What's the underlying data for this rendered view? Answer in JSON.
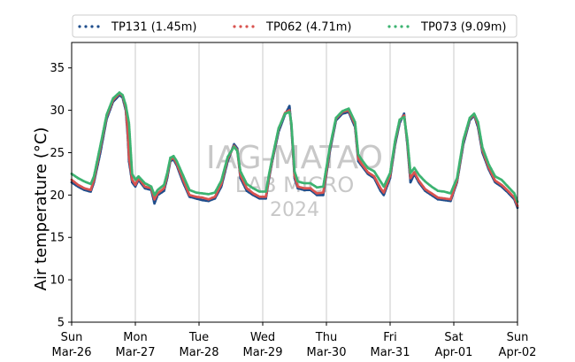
{
  "chart_data": {
    "type": "scatter",
    "title": "",
    "ylabel": "Air temperature (°C)",
    "xlabel": "",
    "ylim": [
      5,
      38
    ],
    "yticks": [
      5,
      10,
      15,
      20,
      25,
      30,
      35
    ],
    "xlim": [
      0,
      7
    ],
    "x_unit": "days since Sun Mar-26 00:00",
    "xticks": [
      {
        "day": "Sun",
        "date": "Mar-26"
      },
      {
        "day": "Mon",
        "date": "Mar-27"
      },
      {
        "day": "Tue",
        "date": "Mar-28"
      },
      {
        "day": "Wed",
        "date": "Mar-29"
      },
      {
        "day": "Thu",
        "date": "Mar-30"
      },
      {
        "day": "Fri",
        "date": "Mar-31"
      },
      {
        "day": "Sat",
        "date": "Apr-01"
      },
      {
        "day": "Sun",
        "date": "Apr-02"
      }
    ],
    "grid": "vertical",
    "legend_position": "top",
    "watermark": [
      "IAG-MATAO",
      "LAB MICRO",
      "2024"
    ],
    "series": [
      {
        "name": "TP131 (1.45m)",
        "color": "#1f4e8c",
        "points": [
          [
            0,
            21.5
          ],
          [
            0.1,
            21.0
          ],
          [
            0.2,
            20.6
          ],
          [
            0.3,
            20.4
          ],
          [
            0.35,
            21.5
          ],
          [
            0.45,
            25
          ],
          [
            0.55,
            29
          ],
          [
            0.65,
            31
          ],
          [
            0.75,
            31.8
          ],
          [
            0.8,
            31.5
          ],
          [
            0.85,
            30
          ],
          [
            0.88,
            27
          ],
          [
            0.9,
            24
          ],
          [
            0.95,
            21.5
          ],
          [
            1.0,
            21.0
          ],
          [
            1.05,
            21.8
          ],
          [
            1.15,
            20.8
          ],
          [
            1.25,
            20.6
          ],
          [
            1.3,
            19.0
          ],
          [
            1.35,
            20.0
          ],
          [
            1.45,
            20.5
          ],
          [
            1.5,
            22
          ],
          [
            1.55,
            24
          ],
          [
            1.6,
            24.2
          ],
          [
            1.65,
            23.5
          ],
          [
            1.75,
            21.5
          ],
          [
            1.85,
            19.8
          ],
          [
            1.95,
            19.6
          ],
          [
            2.05,
            19.4
          ],
          [
            2.15,
            19.3
          ],
          [
            2.25,
            19.6
          ],
          [
            2.35,
            21
          ],
          [
            2.45,
            24
          ],
          [
            2.55,
            26
          ],
          [
            2.6,
            25.5
          ],
          [
            2.65,
            22
          ],
          [
            2.75,
            20.5
          ],
          [
            2.85,
            20.0
          ],
          [
            2.95,
            19.6
          ],
          [
            3.05,
            19.6
          ],
          [
            3.1,
            22
          ],
          [
            3.15,
            24
          ],
          [
            3.25,
            27.5
          ],
          [
            3.35,
            29.5
          ],
          [
            3.42,
            30.5
          ],
          [
            3.45,
            28
          ],
          [
            3.5,
            22
          ],
          [
            3.55,
            20.8
          ],
          [
            3.65,
            20.6
          ],
          [
            3.75,
            20.6
          ],
          [
            3.85,
            20.0
          ],
          [
            3.95,
            20.0
          ],
          [
            4.05,
            25
          ],
          [
            4.15,
            28.8
          ],
          [
            4.25,
            29.6
          ],
          [
            4.35,
            29.8
          ],
          [
            4.45,
            28
          ],
          [
            4.5,
            24
          ],
          [
            4.55,
            23.5
          ],
          [
            4.65,
            22.5
          ],
          [
            4.75,
            22.0
          ],
          [
            4.85,
            20.5
          ],
          [
            4.9,
            20.0
          ],
          [
            5.0,
            22
          ],
          [
            5.08,
            26
          ],
          [
            5.15,
            28.5
          ],
          [
            5.22,
            29.6
          ],
          [
            5.27,
            26
          ],
          [
            5.32,
            21.5
          ],
          [
            5.38,
            22.5
          ],
          [
            5.45,
            21.5
          ],
          [
            5.55,
            20.5
          ],
          [
            5.65,
            20.0
          ],
          [
            5.75,
            19.5
          ],
          [
            5.85,
            19.4
          ],
          [
            5.95,
            19.3
          ],
          [
            6.05,
            21.5
          ],
          [
            6.15,
            26
          ],
          [
            6.25,
            28.8
          ],
          [
            6.32,
            29.4
          ],
          [
            6.38,
            28
          ],
          [
            6.45,
            25
          ],
          [
            6.55,
            23
          ],
          [
            6.65,
            21.5
          ],
          [
            6.75,
            21
          ],
          [
            6.85,
            20.3
          ],
          [
            6.95,
            19.5
          ],
          [
            7.0,
            18.5
          ]
        ]
      },
      {
        "name": "TP062 (4.71m)",
        "color": "#d9534f",
        "points": [
          [
            0,
            21.8
          ],
          [
            0.1,
            21.2
          ],
          [
            0.2,
            20.8
          ],
          [
            0.3,
            20.6
          ],
          [
            0.35,
            21.8
          ],
          [
            0.45,
            25.5
          ],
          [
            0.55,
            29.3
          ],
          [
            0.65,
            31.2
          ],
          [
            0.75,
            32.0
          ],
          [
            0.8,
            31.7
          ],
          [
            0.85,
            30.3
          ],
          [
            0.88,
            27.5
          ],
          [
            0.9,
            24.5
          ],
          [
            0.95,
            21.8
          ],
          [
            1.0,
            21.2
          ],
          [
            1.05,
            22.0
          ],
          [
            1.15,
            21.0
          ],
          [
            1.25,
            20.8
          ],
          [
            1.3,
            19.5
          ],
          [
            1.35,
            20.2
          ],
          [
            1.45,
            20.8
          ],
          [
            1.5,
            22.3
          ],
          [
            1.55,
            24.2
          ],
          [
            1.6,
            24.4
          ],
          [
            1.65,
            23.7
          ],
          [
            1.75,
            21.8
          ],
          [
            1.85,
            20.0
          ],
          [
            1.95,
            19.8
          ],
          [
            2.05,
            19.7
          ],
          [
            2.15,
            19.5
          ],
          [
            2.25,
            19.8
          ],
          [
            2.35,
            21.3
          ],
          [
            2.45,
            24.3
          ],
          [
            2.55,
            25.8
          ],
          [
            2.6,
            25.3
          ],
          [
            2.65,
            22.3
          ],
          [
            2.75,
            20.8
          ],
          [
            2.85,
            20.2
          ],
          [
            2.95,
            19.8
          ],
          [
            3.05,
            19.8
          ],
          [
            3.1,
            22.2
          ],
          [
            3.15,
            24.2
          ],
          [
            3.25,
            27.8
          ],
          [
            3.35,
            29.7
          ],
          [
            3.42,
            30.0
          ],
          [
            3.45,
            28.3
          ],
          [
            3.5,
            22.3
          ],
          [
            3.55,
            21.0
          ],
          [
            3.65,
            20.8
          ],
          [
            3.75,
            20.8
          ],
          [
            3.85,
            20.2
          ],
          [
            3.95,
            20.3
          ],
          [
            4.05,
            25.3
          ],
          [
            4.15,
            29.0
          ],
          [
            4.25,
            29.8
          ],
          [
            4.35,
            30.0
          ],
          [
            4.45,
            28.3
          ],
          [
            4.5,
            24.3
          ],
          [
            4.55,
            23.7
          ],
          [
            4.65,
            22.7
          ],
          [
            4.75,
            22.2
          ],
          [
            4.85,
            20.8
          ],
          [
            4.9,
            20.3
          ],
          [
            5.0,
            22.3
          ],
          [
            5.08,
            26.3
          ],
          [
            5.15,
            28.8
          ],
          [
            5.22,
            29.4
          ],
          [
            5.27,
            26.3
          ],
          [
            5.32,
            22.0
          ],
          [
            5.38,
            22.7
          ],
          [
            5.45,
            21.7
          ],
          [
            5.55,
            20.7
          ],
          [
            5.65,
            20.2
          ],
          [
            5.75,
            19.7
          ],
          [
            5.85,
            19.6
          ],
          [
            5.95,
            19.5
          ],
          [
            6.05,
            21.7
          ],
          [
            6.15,
            26.3
          ],
          [
            6.25,
            29.0
          ],
          [
            6.32,
            29.5
          ],
          [
            6.38,
            28.3
          ],
          [
            6.45,
            25.3
          ],
          [
            6.55,
            23.2
          ],
          [
            6.65,
            21.7
          ],
          [
            6.75,
            21.2
          ],
          [
            6.85,
            20.5
          ],
          [
            6.95,
            19.7
          ],
          [
            7.0,
            18.7
          ]
        ]
      },
      {
        "name": "TP073 (9.09m)",
        "color": "#3cb371",
        "points": [
          [
            0,
            22.5
          ],
          [
            0.1,
            22.0
          ],
          [
            0.2,
            21.6
          ],
          [
            0.3,
            21.3
          ],
          [
            0.35,
            22.2
          ],
          [
            0.45,
            25.8
          ],
          [
            0.55,
            29.5
          ],
          [
            0.65,
            31.4
          ],
          [
            0.75,
            32.1
          ],
          [
            0.8,
            31.8
          ],
          [
            0.85,
            30.6
          ],
          [
            0.9,
            28.5
          ],
          [
            0.95,
            22.5
          ],
          [
            1.0,
            21.8
          ],
          [
            1.05,
            22.2
          ],
          [
            1.15,
            21.4
          ],
          [
            1.25,
            21.0
          ],
          [
            1.3,
            20.0
          ],
          [
            1.35,
            20.6
          ],
          [
            1.45,
            21.2
          ],
          [
            1.5,
            22.6
          ],
          [
            1.55,
            24.4
          ],
          [
            1.6,
            24.6
          ],
          [
            1.65,
            24.0
          ],
          [
            1.75,
            22.3
          ],
          [
            1.85,
            20.6
          ],
          [
            1.95,
            20.3
          ],
          [
            2.05,
            20.2
          ],
          [
            2.15,
            20.1
          ],
          [
            2.25,
            20.3
          ],
          [
            2.35,
            21.7
          ],
          [
            2.45,
            24.5
          ],
          [
            2.55,
            25.7
          ],
          [
            2.6,
            25.2
          ],
          [
            2.65,
            22.8
          ],
          [
            2.75,
            21.3
          ],
          [
            2.85,
            20.8
          ],
          [
            2.95,
            20.4
          ],
          [
            3.05,
            20.4
          ],
          [
            3.1,
            22.5
          ],
          [
            3.15,
            24.4
          ],
          [
            3.25,
            27.9
          ],
          [
            3.35,
            29.6
          ],
          [
            3.42,
            29.8
          ],
          [
            3.45,
            28.5
          ],
          [
            3.5,
            22.8
          ],
          [
            3.55,
            21.6
          ],
          [
            3.65,
            21.4
          ],
          [
            3.75,
            21.4
          ],
          [
            3.85,
            20.9
          ],
          [
            3.95,
            21.0
          ],
          [
            4.05,
            25.5
          ],
          [
            4.15,
            29.1
          ],
          [
            4.25,
            29.9
          ],
          [
            4.35,
            30.2
          ],
          [
            4.45,
            28.6
          ],
          [
            4.5,
            24.8
          ],
          [
            4.55,
            24.2
          ],
          [
            4.65,
            23.2
          ],
          [
            4.75,
            22.8
          ],
          [
            4.85,
            21.6
          ],
          [
            4.9,
            21.0
          ],
          [
            5.0,
            22.6
          ],
          [
            5.08,
            26.5
          ],
          [
            5.15,
            28.9
          ],
          [
            5.22,
            29.2
          ],
          [
            5.27,
            26.6
          ],
          [
            5.32,
            22.6
          ],
          [
            5.38,
            23.2
          ],
          [
            5.45,
            22.4
          ],
          [
            5.55,
            21.6
          ],
          [
            5.65,
            21.0
          ],
          [
            5.75,
            20.5
          ],
          [
            5.85,
            20.4
          ],
          [
            5.95,
            20.2
          ],
          [
            6.05,
            22.0
          ],
          [
            6.15,
            26.5
          ],
          [
            6.25,
            29.1
          ],
          [
            6.32,
            29.6
          ],
          [
            6.38,
            28.6
          ],
          [
            6.45,
            25.6
          ],
          [
            6.55,
            23.6
          ],
          [
            6.65,
            22.2
          ],
          [
            6.75,
            21.8
          ],
          [
            6.85,
            21.0
          ],
          [
            6.95,
            20.2
          ],
          [
            7.0,
            19.2
          ]
        ]
      }
    ]
  }
}
